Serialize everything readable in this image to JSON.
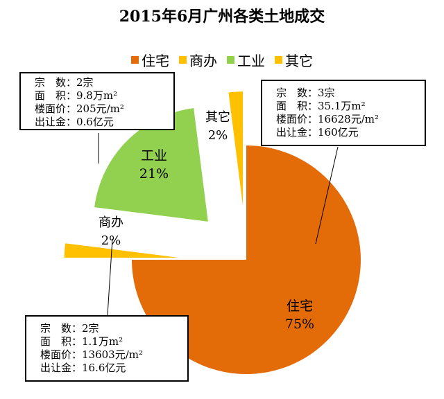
{
  "chart_data": {
    "type": "pie",
    "title": "2015年6月广州各类土地成交",
    "legend_position": "top",
    "slices": [
      {
        "name": "住宅",
        "value": 75,
        "label": "75%",
        "color": "#E36C09"
      },
      {
        "name": "商办",
        "value": 2,
        "label": "2%",
        "color": "#FFC000"
      },
      {
        "name": "工业",
        "value": 21,
        "label": "21%",
        "color": "#92D050"
      },
      {
        "name": "其它",
        "value": 2,
        "label": "2%",
        "color": "#FFC000"
      }
    ],
    "callouts": {
      "residential": [
        "宗　数：3宗",
        "面　积：35.1万m²",
        "楼面价：16628元/m²",
        "出让金：160亿元"
      ],
      "industrial": [
        "宗　数：2宗",
        "面　积：9.8万m²",
        "楼面价：205元/m²",
        "出让金：0.6亿元"
      ],
      "commercial": [
        "宗　数：2宗",
        "面　积：1.1万m²",
        "楼面价：13603元/m²",
        "出让金：16.6亿元"
      ]
    }
  }
}
